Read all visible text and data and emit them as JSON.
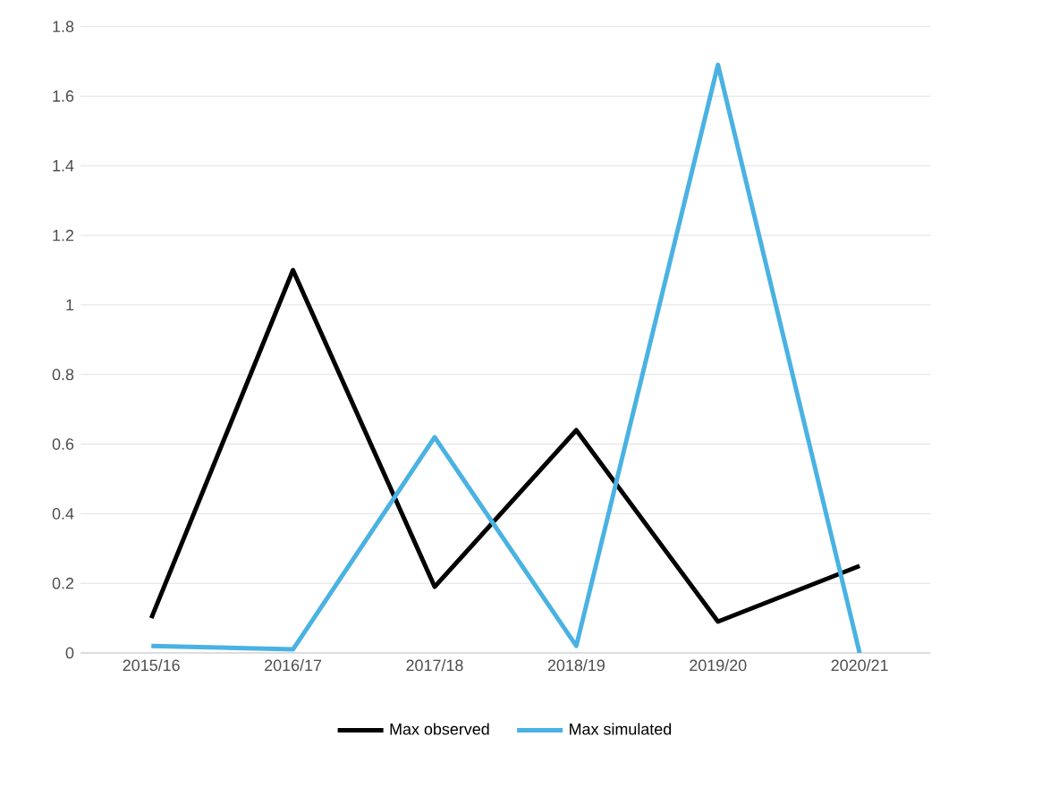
{
  "chart_data": {
    "type": "line",
    "categories": [
      "2015/16",
      "2016/17",
      "2017/18",
      "2018/19",
      "2019/20",
      "2020/21"
    ],
    "series": [
      {
        "name": "Max observed",
        "color": "#000000",
        "values": [
          0.1,
          1.1,
          0.19,
          0.64,
          0.09,
          0.25
        ]
      },
      {
        "name": "Max simulated",
        "color": "#4ab2e2",
        "values": [
          0.02,
          0.01,
          0.62,
          0.02,
          1.69,
          0.0
        ]
      }
    ],
    "ylim": [
      0,
      1.8
    ],
    "yticks": [
      0,
      0.2,
      0.4,
      0.6,
      0.8,
      1,
      1.2,
      1.4,
      1.6,
      1.8
    ],
    "grid": "y",
    "legend": "bottom",
    "marker": "none",
    "line_style": "solid"
  }
}
